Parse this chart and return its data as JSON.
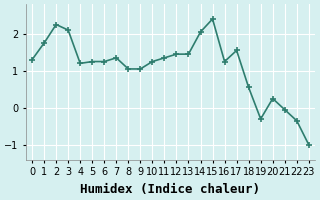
{
  "x": [
    0,
    1,
    2,
    3,
    4,
    5,
    6,
    7,
    8,
    9,
    10,
    11,
    12,
    13,
    14,
    15,
    16,
    17,
    18,
    19,
    20,
    21,
    22,
    23
  ],
  "y": [
    1.3,
    1.75,
    2.25,
    2.1,
    1.2,
    1.25,
    1.25,
    1.35,
    1.05,
    1.05,
    1.25,
    1.35,
    1.45,
    1.45,
    2.05,
    2.4,
    1.25,
    1.55,
    0.55,
    -0.3,
    0.25,
    -0.05,
    -0.35,
    -1.0
  ],
  "line_color": "#2e7d6e",
  "marker": "+",
  "marker_size": 5,
  "bg_color": "#d6f0f0",
  "grid_color": "#ffffff",
  "xlabel": "Humidex (Indice chaleur)",
  "xlabel_fontsize": 9,
  "ylabel_ticks": [
    -1,
    0,
    1,
    2
  ],
  "xlim": [
    -0.5,
    23.5
  ],
  "ylim": [
    -1.4,
    2.8
  ],
  "xtick_labels": [
    "0",
    "1",
    "2",
    "3",
    "4",
    "5",
    "6",
    "7",
    "8",
    "9",
    "10",
    "11",
    "12",
    "13",
    "14",
    "15",
    "16",
    "17",
    "18",
    "19",
    "20",
    "21",
    "22",
    "23"
  ],
  "linewidth": 1.2
}
